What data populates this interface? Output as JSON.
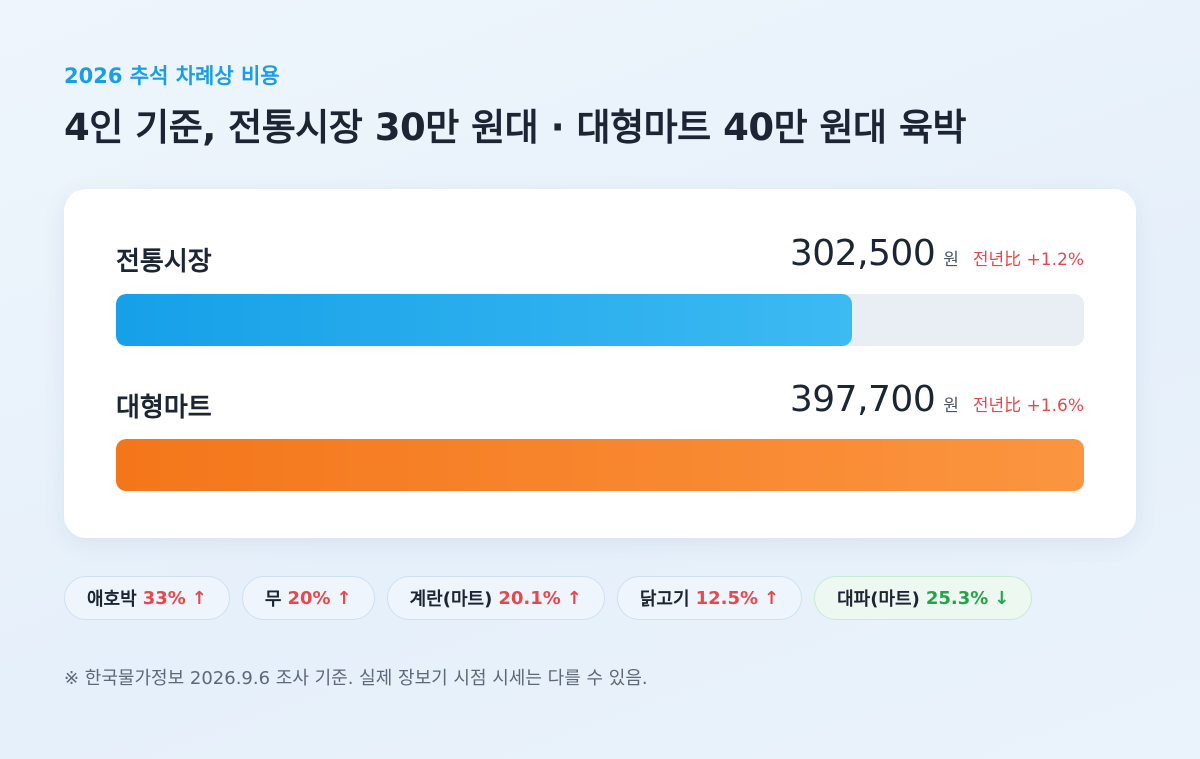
{
  "eyebrow": "2026 추석 차례상 비용",
  "headline": "4인 기준, 전통시장 30만 원대 · 대형마트 40만 원대 육박",
  "chart_data": {
    "type": "bar",
    "orientation": "horizontal",
    "categories": [
      "전통시장",
      "대형마트"
    ],
    "values": [
      302500,
      397700
    ],
    "value_labels": [
      "302,500",
      "397,700"
    ],
    "unit": "원",
    "yoy_labels": [
      "전년比 +1.2%",
      "전년比 +1.6%"
    ],
    "yoy_values": [
      1.2,
      1.6
    ],
    "colors": [
      "#1aa2e8",
      "#f57c22"
    ],
    "xlim": [
      0,
      397700
    ],
    "title": "",
    "xlabel": "",
    "ylabel": ""
  },
  "chips": [
    {
      "name": "애호박",
      "pct": "33%",
      "arrow": "↑",
      "dir": "up"
    },
    {
      "name": "무",
      "pct": "20%",
      "arrow": "↑",
      "dir": "up"
    },
    {
      "name": "계란(마트)",
      "pct": "20.1%",
      "arrow": "↑",
      "dir": "up"
    },
    {
      "name": "닭고기",
      "pct": "12.5%",
      "arrow": "↑",
      "dir": "up"
    },
    {
      "name": "대파(마트)",
      "pct": "25.3%",
      "arrow": "↓",
      "dir": "down"
    }
  ],
  "footnote": "※ 한국물가정보 2026.9.6 조사 기준. 실제 장보기 시점 시세는 다를 수 있음.",
  "colors": {
    "accent": "#1a9ee2",
    "up": "#e5484d",
    "down": "#22a447"
  }
}
